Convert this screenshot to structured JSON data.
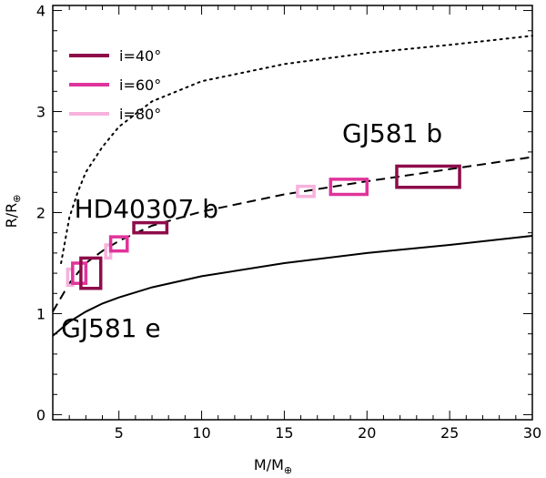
{
  "chart_data": {
    "type": "scatter",
    "title": "",
    "xlabel": "M/M",
    "xlabel_sub": "⊕",
    "ylabel": "R/R",
    "ylabel_sub": "⊕",
    "xlim": [
      1,
      30
    ],
    "ylim": [
      -0.05,
      4.05
    ],
    "x_ticks": [
      5,
      10,
      15,
      20,
      25,
      30
    ],
    "y_ticks": [
      0,
      1,
      2,
      3,
      4
    ],
    "grid": false,
    "legend": {
      "placement": "top-left",
      "entries": [
        {
          "label": "i=40°",
          "color": "#8e0c4a"
        },
        {
          "label": "i=60°",
          "color": "#e0349a"
        },
        {
          "label": "i=80°",
          "color": "#f7b2dc"
        }
      ]
    },
    "curves": [
      {
        "style": "dotted",
        "points": [
          [
            1.5,
            1.5
          ],
          [
            2,
            1.95
          ],
          [
            2.5,
            2.2
          ],
          [
            3,
            2.4
          ],
          [
            4,
            2.65
          ],
          [
            5,
            2.85
          ],
          [
            7,
            3.1
          ],
          [
            10,
            3.3
          ],
          [
            15,
            3.47
          ],
          [
            20,
            3.58
          ],
          [
            25,
            3.66
          ],
          [
            30,
            3.75
          ]
        ]
      },
      {
        "style": "dashed",
        "points": [
          [
            1,
            1.02
          ],
          [
            2,
            1.3
          ],
          [
            3,
            1.5
          ],
          [
            4,
            1.62
          ],
          [
            5,
            1.72
          ],
          [
            7,
            1.87
          ],
          [
            10,
            2.01
          ],
          [
            15,
            2.18
          ],
          [
            20,
            2.31
          ],
          [
            25,
            2.43
          ],
          [
            30,
            2.55
          ]
        ]
      },
      {
        "style": "solid",
        "points": [
          [
            1,
            0.78
          ],
          [
            2,
            0.92
          ],
          [
            3,
            1.02
          ],
          [
            4,
            1.1
          ],
          [
            5,
            1.16
          ],
          [
            7,
            1.26
          ],
          [
            10,
            1.37
          ],
          [
            15,
            1.5
          ],
          [
            20,
            1.6
          ],
          [
            25,
            1.68
          ],
          [
            30,
            1.77
          ]
        ]
      }
    ],
    "boxes": [
      {
        "inclination": "80",
        "color": "#f7b2dc",
        "x": [
          1.9,
          2.2
        ],
        "y": [
          1.28,
          1.44
        ]
      },
      {
        "inclination": "60",
        "color": "#e0349a",
        "x": [
          2.2,
          3.0
        ],
        "y": [
          1.3,
          1.5
        ]
      },
      {
        "inclination": "40",
        "color": "#8e0c4a",
        "x": [
          2.7,
          3.9
        ],
        "y": [
          1.25,
          1.55
        ]
      },
      {
        "inclination": "80",
        "color": "#f7b2dc",
        "x": [
          4.2,
          4.5
        ],
        "y": [
          1.55,
          1.68
        ]
      },
      {
        "inclination": "60",
        "color": "#e0349a",
        "x": [
          4.5,
          5.5
        ],
        "y": [
          1.62,
          1.76
        ]
      },
      {
        "inclination": "40",
        "color": "#8e0c4a",
        "x": [
          5.9,
          7.9
        ],
        "y": [
          1.8,
          1.9
        ]
      },
      {
        "inclination": "80",
        "color": "#f7b2dc",
        "x": [
          15.8,
          16.8
        ],
        "y": [
          2.16,
          2.26
        ]
      },
      {
        "inclination": "60",
        "color": "#e0349a",
        "x": [
          17.8,
          20.0
        ],
        "y": [
          2.18,
          2.33
        ]
      },
      {
        "inclination": "40",
        "color": "#8e0c4a",
        "x": [
          21.8,
          25.6
        ],
        "y": [
          2.25,
          2.46
        ]
      }
    ],
    "annotations": [
      {
        "text": "GJ581 b",
        "x": 18.5,
        "y": 2.7
      },
      {
        "text": "HD40307 b",
        "x": 2.3,
        "y": 1.95
      },
      {
        "text": "GJ581 e",
        "x": 1.5,
        "y": 0.77
      }
    ]
  }
}
